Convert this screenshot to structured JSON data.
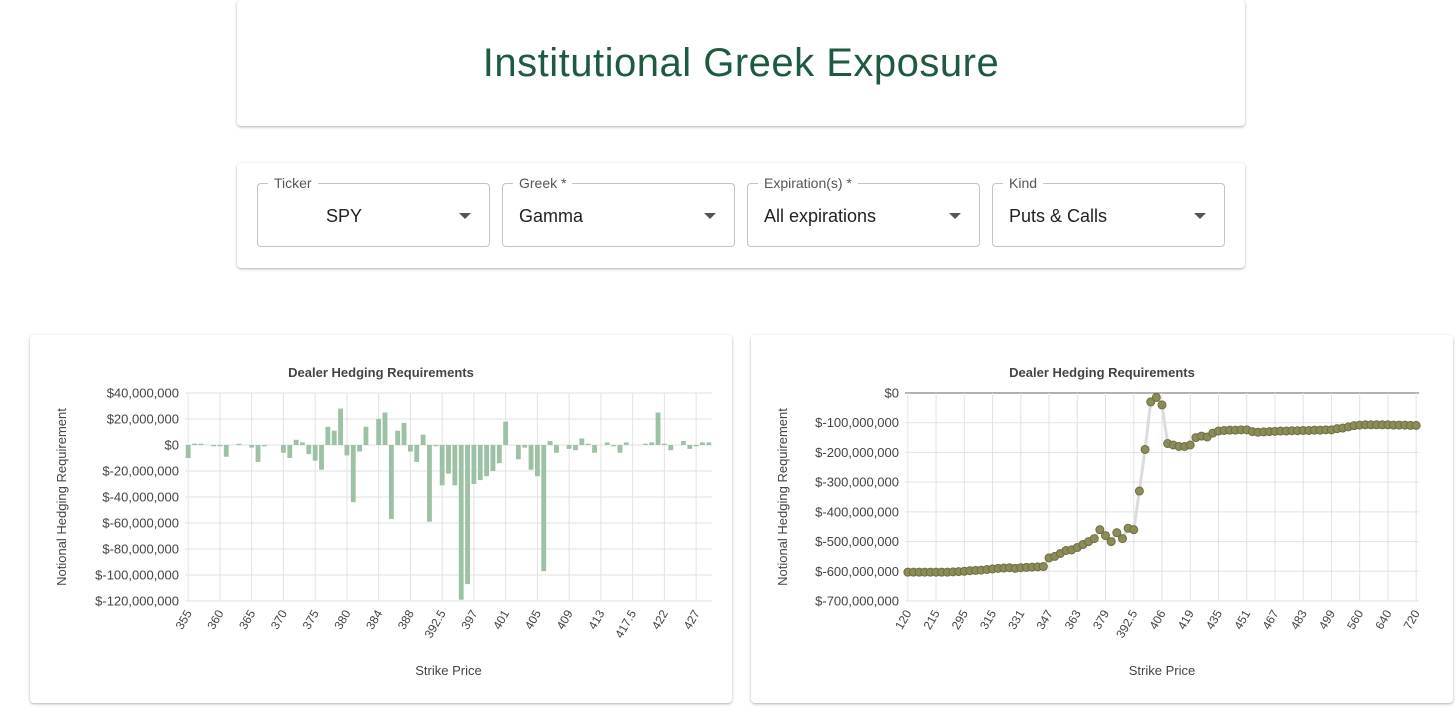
{
  "header": {
    "title": "Institutional Greek Exposure"
  },
  "filters": [
    {
      "label": "Ticker",
      "value": "SPY"
    },
    {
      "label": "Greek *",
      "value": "Gamma"
    },
    {
      "label": "Expiration(s) *",
      "value": "All expirations"
    },
    {
      "label": "Kind",
      "value": "Puts & Calls"
    }
  ],
  "chart_data": [
    {
      "type": "bar",
      "title": "Dealer Hedging Requirements",
      "x_label": "Strike Price",
      "y_label": "Notional Hedging Requirement",
      "color": "#9dc1a5",
      "grid": true,
      "categories": [
        "355",
        null,
        null,
        null,
        null,
        "360",
        null,
        null,
        null,
        null,
        "365",
        null,
        null,
        null,
        null,
        "370",
        null,
        null,
        null,
        null,
        "375",
        null,
        null,
        null,
        null,
        "380",
        null,
        null,
        null,
        null,
        "384",
        null,
        null,
        null,
        null,
        "388",
        null,
        null,
        null,
        null,
        "392.5",
        null,
        null,
        null,
        null,
        "397",
        null,
        null,
        null,
        null,
        "401",
        null,
        null,
        null,
        null,
        "405",
        null,
        null,
        null,
        null,
        "409",
        null,
        null,
        null,
        null,
        "413",
        null,
        null,
        null,
        null,
        "417.5",
        null,
        null,
        null,
        null,
        "422",
        null,
        null,
        null,
        null,
        "427",
        null,
        null
      ],
      "values": [
        -10000000,
        1000000,
        1000000,
        0,
        -1000000,
        -1000000,
        -9000000,
        0,
        1000000,
        0,
        -2000000,
        -13000000,
        -1000000,
        0,
        0,
        -6000000,
        -10000000,
        4000000,
        2000000,
        -7000000,
        -12000000,
        -19000000,
        14000000,
        11000000,
        28000000,
        -8000000,
        -44000000,
        -5000000,
        14000000,
        0,
        20000000,
        25000000,
        -57000000,
        11000000,
        17000000,
        -5000000,
        -13000000,
        8000000,
        -59000000,
        -1000000,
        -31000000,
        -22000000,
        -31000000,
        -119000000,
        -107000000,
        -30000000,
        -27000000,
        -24000000,
        -20000000,
        -14000000,
        18000000,
        0,
        -11000000,
        -2000000,
        -19000000,
        -24000000,
        -97000000,
        3000000,
        -6000000,
        0,
        -3000000,
        -4000000,
        5000000,
        1000000,
        -6000000,
        0,
        2000000,
        -1000000,
        -6000000,
        2000000,
        0,
        0,
        1000000,
        2000000,
        25000000,
        1000000,
        -4000000,
        0,
        3000000,
        -3000000,
        -1000000,
        2000000,
        2000000
      ],
      "ylim": [
        -120000000,
        40000000
      ],
      "yticks": [
        {
          "value": 40000000,
          "label": "$40,000,000"
        },
        {
          "value": 20000000,
          "label": "$20,000,000"
        },
        {
          "value": 0,
          "label": "$0"
        },
        {
          "value": -20000000,
          "label": "$-20,000,000"
        },
        {
          "value": -40000000,
          "label": "$-40,000,000"
        },
        {
          "value": -60000000,
          "label": "$-60,000,000"
        },
        {
          "value": -80000000,
          "label": "$-80,000,000"
        },
        {
          "value": -100000000,
          "label": "$-100,000,000"
        },
        {
          "value": -120000000,
          "label": "$-120,000,000"
        }
      ]
    },
    {
      "type": "line",
      "title": "Dealer Hedging Requirements",
      "x_label": "Strike Price",
      "y_label": "Notional Hedging Requirement",
      "color": "#8c8c58",
      "line_color": "#dcdcdc",
      "grid": true,
      "categories": [
        "120",
        null,
        null,
        null,
        null,
        "215",
        null,
        null,
        null,
        null,
        "295",
        null,
        null,
        null,
        null,
        "315",
        null,
        null,
        null,
        null,
        "331",
        null,
        null,
        null,
        null,
        "347",
        null,
        null,
        null,
        null,
        "363",
        null,
        null,
        null,
        null,
        "379",
        null,
        null,
        null,
        null,
        "392.5",
        null,
        null,
        null,
        null,
        "406",
        null,
        null,
        null,
        null,
        "419",
        null,
        null,
        null,
        null,
        "435",
        null,
        null,
        null,
        null,
        "451",
        null,
        null,
        null,
        null,
        "467",
        null,
        null,
        null,
        null,
        "483",
        null,
        null,
        null,
        null,
        "499",
        null,
        null,
        null,
        null,
        "560",
        null,
        null,
        null,
        null,
        "640",
        null,
        null,
        null,
        null,
        "720"
      ],
      "values": [
        -603000000,
        -603000000,
        -603000000,
        -603000000,
        -603000000,
        -603000000,
        -603000000,
        -603000000,
        -602000000,
        -601000000,
        -600000000,
        -598000000,
        -597000000,
        -596000000,
        -594000000,
        -592000000,
        -590000000,
        -589000000,
        -588000000,
        -590000000,
        -588000000,
        -587000000,
        -586000000,
        -585000000,
        -584000000,
        -555000000,
        -550000000,
        -540000000,
        -530000000,
        -528000000,
        -520000000,
        -510000000,
        -500000000,
        -490000000,
        -460000000,
        -480000000,
        -500000000,
        -470000000,
        -490000000,
        -455000000,
        -460000000,
        -330000000,
        -190000000,
        -30000000,
        -15000000,
        -40000000,
        -170000000,
        -175000000,
        -180000000,
        -180000000,
        -175000000,
        -150000000,
        -145000000,
        -148000000,
        -135000000,
        -128000000,
        -126000000,
        -125000000,
        -125000000,
        -124000000,
        -124000000,
        -130000000,
        -132000000,
        -131000000,
        -130000000,
        -129000000,
        -128000000,
        -128000000,
        -127000000,
        -127000000,
        -126000000,
        -126000000,
        -125000000,
        -125000000,
        -124000000,
        -124000000,
        -120000000,
        -118000000,
        -114000000,
        -110000000,
        -108000000,
        -107000000,
        -107000000,
        -107000000,
        -107000000,
        -107000000,
        -108000000,
        -108000000,
        -108000000,
        -109000000,
        -109000000
      ],
      "ylim": [
        -700000000,
        0
      ],
      "yticks": [
        {
          "value": 0,
          "label": "$0"
        },
        {
          "value": -100000000,
          "label": "$-100,000,000"
        },
        {
          "value": -200000000,
          "label": "$-200,000,000"
        },
        {
          "value": -300000000,
          "label": "$-300,000,000"
        },
        {
          "value": -400000000,
          "label": "$-400,000,000"
        },
        {
          "value": -500000000,
          "label": "$-500,000,000"
        },
        {
          "value": -600000000,
          "label": "$-600,000,000"
        },
        {
          "value": -700000000,
          "label": "$-700,000,000"
        }
      ]
    }
  ]
}
